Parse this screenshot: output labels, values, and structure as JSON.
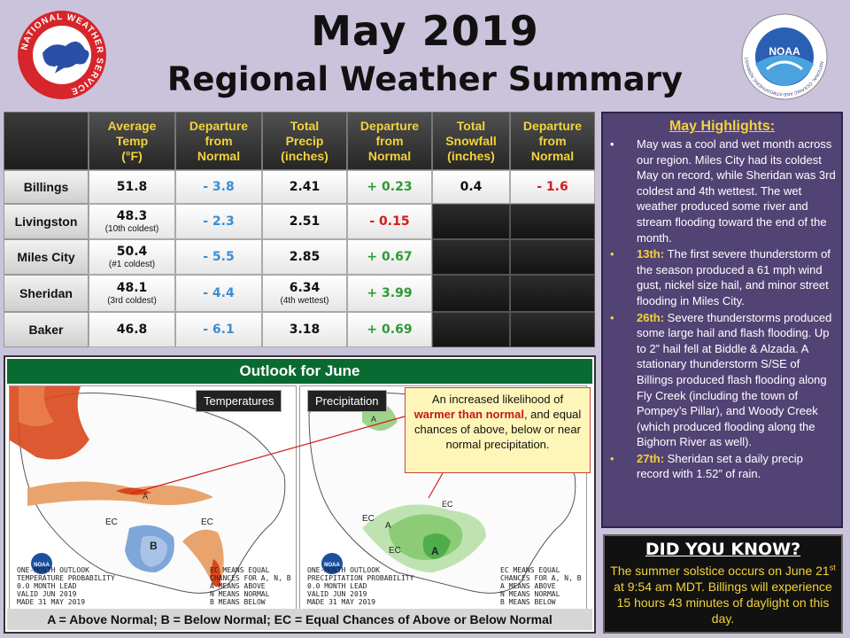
{
  "title_line1": "May 2019",
  "title_line2": "Regional Weather Summary",
  "logos": {
    "left": "NATIONAL WEATHER SERVICE",
    "right": "NOAA",
    "right_ring": "NATIONAL OCEANIC AND ATMOSPHERIC ADMINISTRATION",
    "right_ring2": "U.S. DEPARTMENT OF COMMERCE"
  },
  "table": {
    "headers": [
      {
        "l1": "Average",
        "l2": "Temp",
        "l3": "(°F)"
      },
      {
        "l1": "Departure",
        "l2": "from",
        "l3": "Normal"
      },
      {
        "l1": "Total",
        "l2": "Precip",
        "l3": "(inches)"
      },
      {
        "l1": "Departure",
        "l2": "from",
        "l3": "Normal"
      },
      {
        "l1": "Total",
        "l2": "Snowfall",
        "l3": "(inches)"
      },
      {
        "l1": "Departure",
        "l2": "from",
        "l3": "Normal"
      }
    ],
    "rows": [
      {
        "city": "Billings",
        "temp": "51.8",
        "temp_note": "",
        "temp_dep": "- 3.8",
        "precip": "2.41",
        "precip_note": "",
        "precip_dep": "+ 0.23",
        "snow": "0.4",
        "snow_dep": "- 1.6"
      },
      {
        "city": "Livingston",
        "temp": "48.3",
        "temp_note": "(10th coldest)",
        "temp_dep": "- 2.3",
        "precip": "2.51",
        "precip_note": "",
        "precip_dep": "- 0.15",
        "snow": "",
        "snow_dep": ""
      },
      {
        "city": "Miles City",
        "temp": "50.4",
        "temp_note": "(#1 coldest)",
        "temp_dep": "- 5.5",
        "precip": "2.85",
        "precip_note": "",
        "precip_dep": "+ 0.67",
        "snow": "",
        "snow_dep": ""
      },
      {
        "city": "Sheridan",
        "temp": "48.1",
        "temp_note": "(3rd coldest)",
        "temp_dep": "- 4.4",
        "precip": "6.34",
        "precip_note": "(4th wettest)",
        "precip_dep": "+ 3.99",
        "snow": "",
        "snow_dep": ""
      },
      {
        "city": "Baker",
        "temp": "46.8",
        "temp_note": "",
        "temp_dep": "- 6.1",
        "precip": "3.18",
        "precip_note": "",
        "precip_dep": "+ 0.69",
        "snow": "",
        "snow_dep": ""
      }
    ]
  },
  "highlights": {
    "title": "May Highlights:",
    "items": [
      {
        "lead": "",
        "text": "May was a cool and wet month across our region. Miles City had its coldest May on record, while Sheridan was 3rd coldest and 4th wettest.  The wet weather produced some river and stream flooding toward the end of the month."
      },
      {
        "lead": "13th:",
        "text": "The first severe thunderstorm of the season produced a 61 mph wind gust, nickel size hail, and minor street flooding in Miles City."
      },
      {
        "lead": "26th:",
        "text": "Severe thunderstorms produced some large hail and flash flooding. Up to 2” hail fell at Biddle & Alzada. A stationary thunderstorm S/SE of Billings produced flash flooding along Fly Creek (including the town of Pompey’s Pillar), and Woody Creek (which produced flooding along the Bighorn River as well)."
      },
      {
        "lead": "27th:",
        "text": "Sheridan set a daily precip record with 1.52” of rain."
      }
    ]
  },
  "did_you_know": {
    "title": "DID YOU KNOW?",
    "text": "The summer solstice occurs on June 21st at 9:54 am MDT. Billings will experience 15 hours 43 minutes of daylight on this day."
  },
  "outlook": {
    "title": "Outlook for June",
    "temp_label": "Temperatures",
    "precip_label": "Precipitation",
    "temp_map_text": [
      "ONE-MONTH OUTLOOK",
      "TEMPERATURE PROBABILITY",
      "0.0 MONTH LEAD",
      "VALID JUN 2019",
      "MADE 31 MAY 2019"
    ],
    "precip_map_text": [
      "ONE-MONTH OUTLOOK",
      "PRECIPITATION PROBABILITY",
      "0.0 MONTH LEAD",
      "VALID JUN 2019",
      "MADE 31 MAY 2019"
    ],
    "legend_text": [
      "EC MEANS EQUAL",
      "CHANCES FOR A, N, B",
      "A MEANS ABOVE",
      "N MEANS NORMAL",
      "B MEANS BELOW"
    ],
    "callout_pre": "An increased likelihood of",
    "callout_warm": "warmer than normal",
    "callout_post": ", and equal chances of above, below or near normal precipitation.",
    "footer": "A = Above Normal;  B = Below Normal;  EC = Equal Chances of Above or Below Normal"
  },
  "colors": {
    "background": "#cbc3dc",
    "header_text": "#f3d23a",
    "negative_dep": "#3a8ed3",
    "positive_dep": "#2f9a35",
    "red_dep": "#d11d1d",
    "outlook_bar": "#0a6b32",
    "highlights_bg": "#524375"
  }
}
